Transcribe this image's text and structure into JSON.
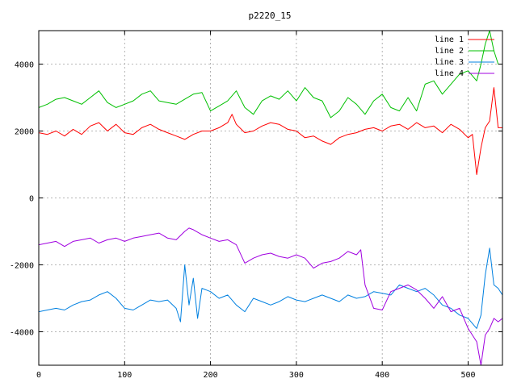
{
  "chart_data": {
    "type": "line",
    "title": "p2220_15",
    "xlabel": "",
    "ylabel": "",
    "xlim": [
      0,
      540
    ],
    "ylim": [
      -5000,
      5000
    ],
    "xticks": [
      0,
      100,
      200,
      300,
      400,
      500
    ],
    "yticks": [
      -4000,
      -2000,
      0,
      2000,
      4000
    ],
    "grid": true,
    "legend_position": "top-right",
    "series": [
      {
        "name": "line 1",
        "color": "#ff0000",
        "x": [
          0,
          10,
          20,
          30,
          40,
          50,
          60,
          70,
          80,
          90,
          100,
          110,
          120,
          130,
          140,
          150,
          160,
          170,
          180,
          190,
          200,
          210,
          220,
          225,
          230,
          240,
          250,
          260,
          270,
          280,
          290,
          300,
          310,
          320,
          330,
          340,
          350,
          360,
          370,
          380,
          390,
          400,
          410,
          420,
          430,
          440,
          450,
          460,
          470,
          480,
          490,
          500,
          505,
          510,
          515,
          520,
          525,
          530,
          535,
          540
        ],
        "y": [
          1950,
          1900,
          2000,
          1850,
          2050,
          1900,
          2150,
          2250,
          2000,
          2200,
          1950,
          1900,
          2100,
          2200,
          2050,
          1950,
          1850,
          1750,
          1900,
          2000,
          2000,
          2100,
          2250,
          2500,
          2200,
          1950,
          2000,
          2150,
          2250,
          2200,
          2050,
          2000,
          1800,
          1850,
          1700,
          1600,
          1800,
          1900,
          1950,
          2050,
          2100,
          2000,
          2150,
          2200,
          2050,
          2250,
          2100,
          2150,
          1950,
          2200,
          2050,
          1800,
          1900,
          700,
          1500,
          2100,
          2300,
          3300,
          2100,
          2100
        ]
      },
      {
        "name": "line 2",
        "color": "#00c000",
        "x": [
          0,
          10,
          20,
          30,
          40,
          50,
          60,
          70,
          80,
          90,
          100,
          110,
          120,
          130,
          140,
          150,
          160,
          170,
          180,
          190,
          200,
          210,
          220,
          230,
          240,
          250,
          260,
          270,
          280,
          290,
          300,
          310,
          320,
          330,
          340,
          350,
          360,
          370,
          380,
          390,
          400,
          410,
          420,
          430,
          440,
          450,
          460,
          470,
          480,
          490,
          500,
          510,
          515,
          520,
          525,
          530,
          535,
          540
        ],
        "y": [
          2700,
          2800,
          2950,
          3000,
          2900,
          2800,
          3000,
          3200,
          2850,
          2700,
          2800,
          2900,
          3100,
          3200,
          2900,
          2850,
          2800,
          2950,
          3100,
          3150,
          2600,
          2750,
          2900,
          3200,
          2700,
          2500,
          2900,
          3050,
          2950,
          3200,
          2900,
          3300,
          3000,
          2900,
          2400,
          2600,
          3000,
          2800,
          2500,
          2900,
          3100,
          2700,
          2600,
          3000,
          2600,
          3400,
          3500,
          3100,
          3400,
          3700,
          3800,
          3500,
          4000,
          4600,
          5000,
          4400,
          4000,
          4000
        ]
      },
      {
        "name": "line 3",
        "color": "#0080e0",
        "x": [
          0,
          10,
          20,
          30,
          40,
          50,
          60,
          70,
          80,
          90,
          100,
          110,
          120,
          130,
          140,
          150,
          160,
          165,
          170,
          175,
          180,
          185,
          190,
          200,
          210,
          220,
          230,
          240,
          250,
          260,
          270,
          280,
          290,
          300,
          310,
          320,
          330,
          340,
          350,
          360,
          370,
          380,
          390,
          400,
          410,
          420,
          430,
          440,
          450,
          460,
          470,
          480,
          490,
          500,
          510,
          515,
          520,
          525,
          530,
          535,
          540
        ],
        "y": [
          -3400,
          -3350,
          -3300,
          -3350,
          -3200,
          -3100,
          -3050,
          -2900,
          -2800,
          -3000,
          -3300,
          -3350,
          -3200,
          -3050,
          -3100,
          -3050,
          -3300,
          -3700,
          -2000,
          -3200,
          -2400,
          -3600,
          -2700,
          -2800,
          -3000,
          -2900,
          -3200,
          -3400,
          -3000,
          -3100,
          -3200,
          -3100,
          -2950,
          -3050,
          -3100,
          -3000,
          -2900,
          -3000,
          -3100,
          -2900,
          -3000,
          -2950,
          -2800,
          -2850,
          -2900,
          -2600,
          -2700,
          -2800,
          -2700,
          -2900,
          -3200,
          -3300,
          -3500,
          -3600,
          -3900,
          -3500,
          -2300,
          -1500,
          -2600,
          -2700,
          -2900
        ]
      },
      {
        "name": "line 4",
        "color": "#a000e0",
        "x": [
          0,
          10,
          20,
          30,
          40,
          50,
          60,
          70,
          80,
          90,
          100,
          110,
          120,
          130,
          140,
          150,
          160,
          170,
          175,
          180,
          190,
          200,
          210,
          220,
          230,
          240,
          250,
          260,
          270,
          280,
          290,
          300,
          310,
          320,
          330,
          340,
          350,
          360,
          370,
          375,
          380,
          390,
          400,
          410,
          420,
          430,
          440,
          450,
          460,
          470,
          480,
          490,
          500,
          505,
          510,
          515,
          520,
          525,
          530,
          535,
          540
        ],
        "y": [
          -1400,
          -1350,
          -1300,
          -1450,
          -1300,
          -1250,
          -1200,
          -1350,
          -1250,
          -1200,
          -1300,
          -1200,
          -1150,
          -1100,
          -1050,
          -1200,
          -1250,
          -1000,
          -900,
          -950,
          -1100,
          -1200,
          -1300,
          -1250,
          -1400,
          -1950,
          -1800,
          -1700,
          -1650,
          -1750,
          -1800,
          -1700,
          -1800,
          -2100,
          -1950,
          -1900,
          -1800,
          -1600,
          -1700,
          -1550,
          -2600,
          -3300,
          -3350,
          -2800,
          -2700,
          -2600,
          -2750,
          -3000,
          -3300,
          -2950,
          -3400,
          -3300,
          -3900,
          -4100,
          -4300,
          -5000,
          -4100,
          -3900,
          -3600,
          -3700,
          -3600
        ]
      }
    ]
  }
}
